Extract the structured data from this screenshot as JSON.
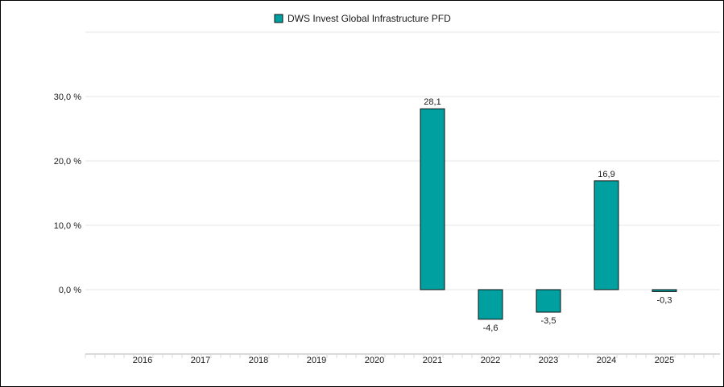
{
  "chart_data": {
    "type": "bar",
    "categories": [
      "2016",
      "2017",
      "2018",
      "2019",
      "2020",
      "2021",
      "2022",
      "2023",
      "2024",
      "2025"
    ],
    "series": [
      {
        "name": "DWS Invest Global Infrastructure PFD",
        "values": [
          null,
          null,
          null,
          null,
          null,
          28.1,
          -4.6,
          -3.5,
          16.9,
          -0.3
        ],
        "labels": [
          "",
          "",
          "",
          "",
          "",
          "28,1",
          "-4,6",
          "-3,5",
          "16,9",
          "-0,3"
        ],
        "color": "#00a0a0"
      }
    ],
    "yticks": [
      {
        "value": 0,
        "label": "0,0 %"
      },
      {
        "value": 10,
        "label": "10,0 %"
      },
      {
        "value": 20,
        "label": "20,0 %"
      },
      {
        "value": 30,
        "label": "30,0 %"
      }
    ],
    "ylim": [
      -10,
      40
    ],
    "grid": true,
    "legend_position": "top-center",
    "colors": {
      "bar": "#00a0a0",
      "bar_outline": "#111111",
      "grid": "#e6e6e6",
      "axis": "#d9d9d9"
    }
  }
}
